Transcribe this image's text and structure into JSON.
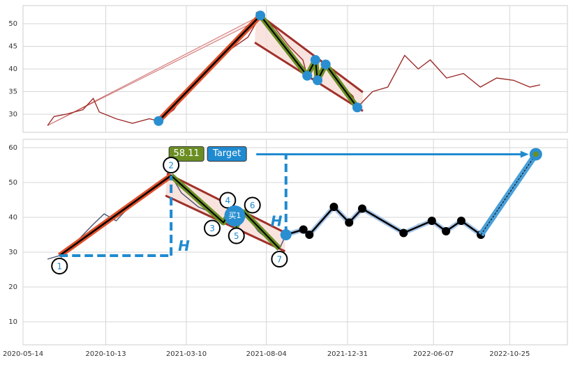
{
  "chart_data": [
    {
      "type": "line",
      "ylim": [
        26,
        54
      ],
      "yticks": [
        30,
        35,
        40,
        45,
        50
      ],
      "xlim": [
        "2020-05-14",
        "2023-02-08"
      ],
      "xticks": [
        "2020-10-13",
        "2021-03-10",
        "2021-08-04",
        "2021-12-31",
        "2022-06-07",
        "2022-10-25"
      ],
      "grid": true,
      "price": {
        "color": "#9b2d2a",
        "x": [
          "2020-06-28",
          "2020-07-10",
          "2020-08-01",
          "2020-09-01",
          "2020-09-20",
          "2020-10-01",
          "2020-11-01",
          "2020-12-01",
          "2021-01-01",
          "2021-01-18",
          "2021-02-15",
          "2021-03-15",
          "2021-04-10",
          "2021-05-01",
          "2021-06-01",
          "2021-07-01",
          "2021-07-24",
          "2021-08-20",
          "2021-09-15",
          "2021-10-10",
          "2021-10-18",
          "2021-11-02",
          "2021-11-06",
          "2021-11-21",
          "2021-12-15",
          "2022-01-10",
          "2022-01-18",
          "2022-02-15",
          "2022-03-15",
          "2022-04-15",
          "2022-05-10",
          "2022-06-01",
          "2022-07-01",
          "2022-08-01",
          "2022-09-01",
          "2022-10-01",
          "2022-11-01",
          "2022-12-01",
          "2022-12-20"
        ],
        "values": [
          27.5,
          29.5,
          30,
          31,
          33.5,
          30.5,
          29,
          28,
          29,
          28.5,
          31,
          36,
          39,
          42,
          44.5,
          47,
          51.8,
          49,
          45,
          42,
          38.5,
          42,
          37.5,
          41,
          37,
          34,
          31.5,
          35,
          36,
          43,
          40,
          42,
          38,
          39,
          36,
          38,
          37.5,
          36,
          36.5
        ]
      },
      "pattern": {
        "color": "#2a8fd0",
        "x": [
          "2021-01-18",
          "2021-07-24",
          "2021-10-18",
          "2021-11-02",
          "2021-11-06",
          "2021-11-21",
          "2022-01-18"
        ],
        "values": [
          28.5,
          51.8,
          38.5,
          42,
          37.5,
          41,
          31.5
        ]
      }
    },
    {
      "type": "line",
      "ylim": [
        3.4,
        62.4
      ],
      "yticks": [
        10,
        20,
        30,
        40,
        50,
        60
      ],
      "xlim": [
        "2020-05-14",
        "2023-02-08"
      ],
      "xticks": [
        "2020-05-14",
        "2020-10-13",
        "2021-03-10",
        "2021-08-04",
        "2021-12-31",
        "2022-06-07",
        "2022-10-25"
      ],
      "grid": true,
      "price": {
        "color": "#4a5470",
        "x": [
          "2020-06-28",
          "2020-07-20",
          "2020-08-20",
          "2020-09-20",
          "2020-10-10",
          "2020-11-01",
          "2020-12-01",
          "2021-01-01",
          "2021-02-10",
          "2021-03-01",
          "2021-04-01",
          "2021-05-01",
          "2021-05-17",
          "2021-06-03",
          "2021-06-10",
          "2021-06-24",
          "2021-07-20",
          "2021-08-28",
          "2021-09-09",
          "2021-10-11",
          "2021-10-22",
          "2021-12-06",
          "2022-01-03",
          "2022-01-27",
          "2022-02-20",
          "2022-04-13",
          "2022-05-10",
          "2022-06-04",
          "2022-06-30",
          "2022-07-28",
          "2022-09-02"
        ],
        "values": [
          28,
          29,
          33,
          38,
          41,
          39,
          44,
          48,
          52,
          47,
          43,
          41,
          38.5,
          42.5,
          37.5,
          41.5,
          36,
          31,
          35,
          36.5,
          35,
          43,
          38.5,
          42.5,
          40,
          35.5,
          38,
          39,
          36,
          39,
          35
        ]
      },
      "pattern": {
        "color": "#2a8fd0",
        "x": [
          "2020-07-20",
          "2021-02-10",
          "2021-05-17",
          "2021-06-03",
          "2021-06-10",
          "2021-06-24",
          "2021-08-28"
        ],
        "values": [
          29,
          52,
          38.5,
          42.5,
          37.5,
          41.5,
          31
        ],
        "labels": [
          "1",
          "2",
          "3",
          "4",
          "5",
          "6",
          "7"
        ]
      },
      "breakout": {
        "x": "2021-09-09",
        "value": 35,
        "color": "#2a8fd0"
      },
      "pivots": {
        "color": "#000000",
        "x": [
          "2021-09-09",
          "2021-10-11",
          "2021-10-22",
          "2021-12-06",
          "2022-01-03",
          "2022-01-27",
          "2022-04-13",
          "2022-06-04",
          "2022-06-30",
          "2022-07-28",
          "2022-09-02"
        ],
        "values": [
          35,
          36.5,
          35,
          43,
          38.5,
          42.5,
          35.5,
          39,
          36,
          39,
          35
        ]
      },
      "buy_point": {
        "x": "2021-06-07",
        "value": 40.4,
        "label": "买1"
      },
      "target": {
        "x": "2022-12-12",
        "value": 58.11,
        "value_label": "58.11",
        "label": "Target"
      },
      "annotations": [
        "H",
        "H"
      ]
    }
  ]
}
